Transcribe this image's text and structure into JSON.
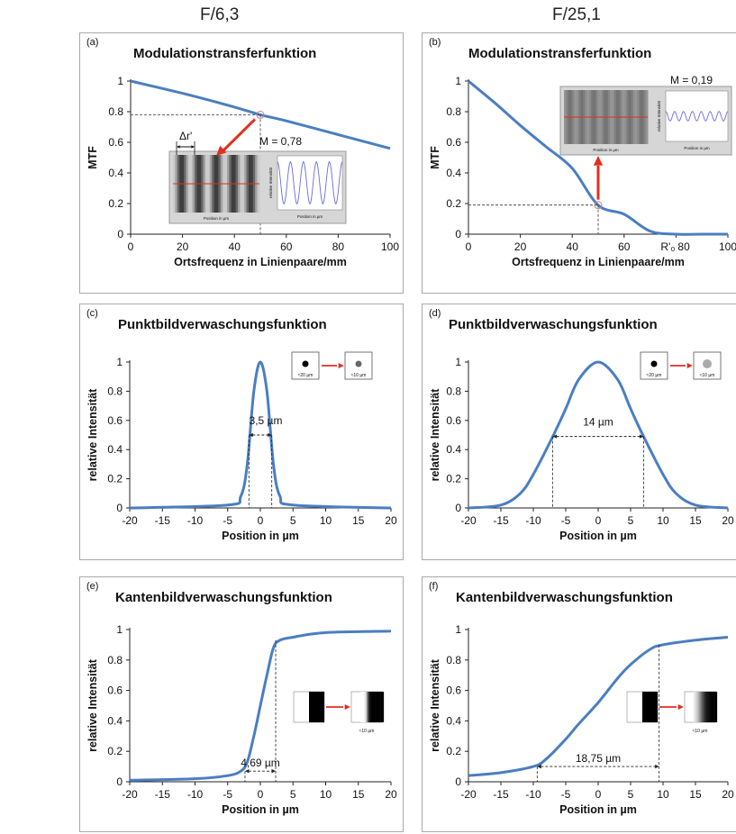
{
  "headers": {
    "left": "F/6,3",
    "right": "F/25,1"
  },
  "colors": {
    "curve": "#4a7ec2",
    "arrow": "#e03020",
    "frame": "#a9a9a9",
    "dash": "#333333"
  },
  "chart_data": [
    {
      "id": "a",
      "tag": "(a)",
      "type": "line",
      "title": "Modulationstransferfunktion",
      "xlabel": "Ortsfrequenz in Linienpaare/mm",
      "ylabel": "MTF",
      "xlim": [
        0,
        100
      ],
      "ylim": [
        0,
        1
      ],
      "xticks": [
        "0",
        "20",
        "40",
        "60",
        "80",
        "100"
      ],
      "yticks": [
        "0",
        "0.2",
        "0.4",
        "0.6",
        "0.8",
        "1"
      ],
      "series": [
        {
          "x": [
            0,
            20,
            40,
            50,
            60,
            80,
            100
          ],
          "y": [
            1,
            0.92,
            0.83,
            0.78,
            0.74,
            0.65,
            0.56
          ]
        }
      ],
      "marker": {
        "x": 50,
        "y": 0.78
      },
      "annotations": {
        "m_value": "M = 0,78",
        "delta": "Δr'"
      },
      "inset": {
        "ytitle": "relative Intensität",
        "xtitle": "Position in µm",
        "cycles": 5,
        "amplitude": 0.78
      }
    },
    {
      "id": "b",
      "tag": "(b)",
      "type": "line",
      "title": "Modulationstransferfunktion",
      "xlabel": "Ortsfrequenz in Linienpaare/mm",
      "ylabel": "MTF",
      "xlim": [
        0,
        100
      ],
      "ylim": [
        0,
        1
      ],
      "xticks": [
        "0",
        "20",
        "40",
        "60",
        "80",
        "100"
      ],
      "yticks": [
        "0",
        "0.2",
        "0.4",
        "0.6",
        "0.8",
        "1"
      ],
      "series": [
        {
          "x": [
            0,
            10,
            20,
            30,
            40,
            50,
            60,
            70,
            80,
            90,
            100
          ],
          "y": [
            1,
            0.86,
            0.71,
            0.57,
            0.43,
            0.19,
            0.13,
            0.02,
            0,
            0,
            0
          ]
        }
      ],
      "marker": {
        "x": 50,
        "y": 0.19
      },
      "cutoff_label": "R'₀",
      "annotations": {
        "m_value": "M = 0,19"
      },
      "inset": {
        "ytitle": "relative Intensität",
        "xtitle": "Position in µm",
        "cycles": 7,
        "amplitude": 0.19
      }
    },
    {
      "id": "c",
      "tag": "(c)",
      "type": "line",
      "title": "Punktbildverwaschungsfunktion",
      "xlabel": "Position in µm",
      "ylabel": "relative Intensität",
      "xlim": [
        -20,
        20
      ],
      "ylim": [
        0,
        1
      ],
      "xticks": [
        "-20",
        "-15",
        "-10",
        "-5",
        "0",
        "5",
        "10",
        "15",
        "20"
      ],
      "yticks": [
        "0",
        "0.2",
        "0.4",
        "0.6",
        "0.8",
        "1"
      ],
      "series": [
        {
          "x": [
            -20,
            -5,
            -3,
            -2,
            -1,
            0,
            1,
            2,
            3,
            5,
            20
          ],
          "y": [
            0,
            0.02,
            0.08,
            0.3,
            0.8,
            1,
            0.8,
            0.3,
            0.08,
            0.02,
            0
          ]
        }
      ],
      "width_marker": {
        "from": -1.75,
        "to": 1.75,
        "y": 0.5,
        "label": "3,5 µm"
      },
      "icons": {
        "left_label": "≈20 µm",
        "right_label": "≈10 µm"
      }
    },
    {
      "id": "d",
      "tag": "(d)",
      "type": "line",
      "title": "Punktbildverwaschungsfunktion",
      "xlabel": "Position in µm",
      "ylabel": "relative Intensität",
      "xlim": [
        -20,
        20
      ],
      "ylim": [
        0,
        1
      ],
      "xticks": [
        "-20",
        "-15",
        "-10",
        "-5",
        "0",
        "5",
        "10",
        "15",
        "20"
      ],
      "yticks": [
        "0",
        "0.2",
        "0.4",
        "0.6",
        "0.8",
        "1"
      ],
      "series": [
        {
          "x": [
            -20,
            -15,
            -12,
            -10,
            -7,
            -5,
            -3,
            0,
            3,
            5,
            7,
            10,
            12,
            15,
            20
          ],
          "y": [
            0,
            0.02,
            0.1,
            0.23,
            0.49,
            0.68,
            0.88,
            1,
            0.88,
            0.68,
            0.49,
            0.23,
            0.1,
            0.02,
            0
          ]
        }
      ],
      "width_marker": {
        "from": -7,
        "to": 7,
        "y": 0.49,
        "label": "14 µm"
      },
      "icons": {
        "left_label": "≈20 µm",
        "right_label": "≈10 µm"
      }
    },
    {
      "id": "e",
      "tag": "(e)",
      "type": "line",
      "title": "Kantenbildverwaschungsfunktion",
      "xlabel": "Position in µm",
      "ylabel": "relative Intensität",
      "xlim": [
        -20,
        20
      ],
      "ylim": [
        0,
        1
      ],
      "xticks": [
        "-20",
        "-15",
        "-10",
        "-5",
        "0",
        "5",
        "10",
        "15",
        "20"
      ],
      "yticks": [
        "0",
        "0.2",
        "0.4",
        "0.6",
        "0.8",
        "1"
      ],
      "series": [
        {
          "x": [
            -20,
            -10,
            -5,
            -3,
            -2,
            -1,
            0,
            1,
            2,
            3,
            5,
            10,
            20
          ],
          "y": [
            0.01,
            0.02,
            0.04,
            0.07,
            0.13,
            0.3,
            0.5,
            0.7,
            0.88,
            0.93,
            0.95,
            0.98,
            0.99
          ]
        }
      ],
      "width_marker": {
        "from": -2.35,
        "to": 2.35,
        "y": 0.07,
        "label": "4,69 µm"
      },
      "icons": {
        "right_label": "≈10 µm"
      }
    },
    {
      "id": "f",
      "tag": "(f)",
      "type": "line",
      "title": "Kantenbildverwaschungsfunktion",
      "xlabel": "Position in µm",
      "ylabel": "relative Intensität",
      "xlim": [
        -20,
        20
      ],
      "ylim": [
        0,
        1
      ],
      "xticks": [
        "-20",
        "-15",
        "-10",
        "-5",
        "0",
        "5",
        "10",
        "15",
        "20"
      ],
      "yticks": [
        "0",
        "0.2",
        "0.4",
        "0.6",
        "0.8",
        "1"
      ],
      "series": [
        {
          "x": [
            -20,
            -15,
            -10,
            -8,
            -5,
            -3,
            0,
            3,
            5,
            8,
            10,
            15,
            20
          ],
          "y": [
            0.04,
            0.06,
            0.1,
            0.15,
            0.28,
            0.38,
            0.52,
            0.68,
            0.77,
            0.87,
            0.9,
            0.93,
            0.95
          ]
        }
      ],
      "width_marker": {
        "from": -9.4,
        "to": 9.4,
        "y": 0.1,
        "label": "18,75 µm"
      },
      "icons": {
        "right_label": "≈10 µm"
      }
    }
  ]
}
